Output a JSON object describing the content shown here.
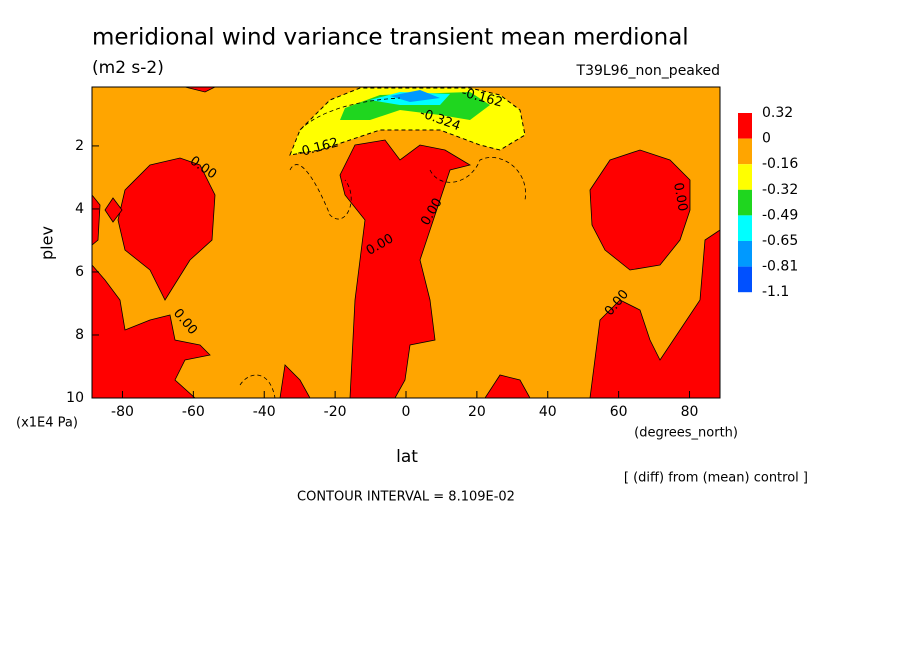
{
  "chart_data": {
    "type": "contour",
    "title": "meridional wind variance transient mean merdional",
    "subtitle": "(m2 s-2)",
    "dataset": "T39L96_non_peaked",
    "x_label": "lat",
    "x_units": "(degrees_north)",
    "y_label": "plev",
    "y_units": "(x1E4 Pa)",
    "note": "[ (diff) from (mean) control ]",
    "footer": "CONTOUR INTERVAL = 8.109E-02",
    "xlim": [
      -88.6,
      88.6
    ],
    "xticks": [
      -80,
      -60,
      -40,
      -20,
      0,
      20,
      40,
      60,
      80
    ],
    "ylim": [
      10,
      0.13
    ],
    "yticks": [
      2,
      4,
      6,
      8,
      10
    ],
    "colorbar": {
      "levels": [
        0.32,
        0,
        -0.16,
        -0.32,
        -0.49,
        -0.65,
        -0.81,
        -1.1
      ],
      "colors": [
        "#ff0000",
        "#ffa500",
        "#ffff00",
        "#1fd61f",
        "#00ffff",
        "#0099ff",
        "#0050ff"
      ]
    },
    "contour_labels": [
      "0.00",
      "-0.162",
      "-0.162",
      "-0.324",
      "0.00",
      "0.00",
      "0.00",
      "0.00",
      "0.00"
    ]
  }
}
